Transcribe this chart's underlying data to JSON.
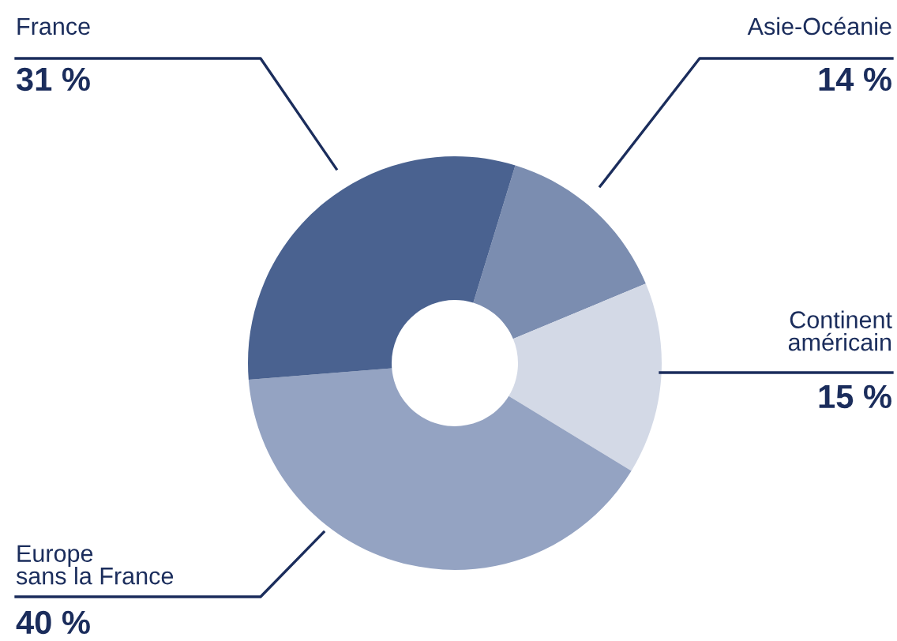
{
  "chart_data": {
    "type": "donut",
    "categories": [
      "Asie-Océanie",
      "Continent\naméricain",
      "Europe\nsans la France",
      "France"
    ],
    "values": [
      14,
      15,
      40,
      31
    ],
    "value_labels": [
      "14 %",
      "15 %",
      "40 %",
      "31 %"
    ],
    "colors": [
      "#7b8db0",
      "#d3d9e6",
      "#94a3c2",
      "#4a6290"
    ],
    "legend": false
  }
}
